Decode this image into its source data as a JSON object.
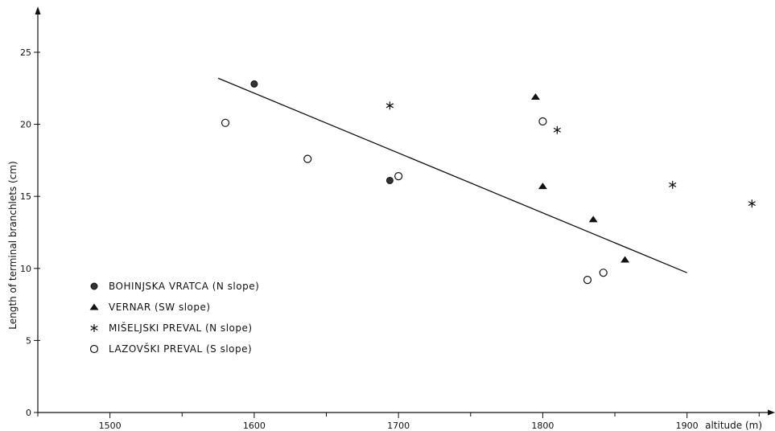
{
  "chart_data": {
    "type": "scatter",
    "title": "",
    "xlabel": "altitude (m)",
    "ylabel": "Length of terminal branchlets (cm)",
    "xlim": [
      1450,
      1950
    ],
    "ylim": [
      0,
      27
    ],
    "xticks": [
      1500,
      1600,
      1700,
      1800,
      1900
    ],
    "yticks": [
      0,
      5,
      10,
      15,
      20,
      25
    ],
    "grid": false,
    "legend_position": "bottom-left",
    "series": [
      {
        "name": "BOHINJSKA VRATCA (N slope)",
        "marker": "filled-circle",
        "points": [
          {
            "x": 1600,
            "y": 22.8
          },
          {
            "x": 1694,
            "y": 16.1
          }
        ]
      },
      {
        "name": "VERNAR (SW slope)",
        "marker": "filled-triangle",
        "points": [
          {
            "x": 1795,
            "y": 21.9
          },
          {
            "x": 1800,
            "y": 15.7
          },
          {
            "x": 1835,
            "y": 13.4
          },
          {
            "x": 1857,
            "y": 10.6
          }
        ]
      },
      {
        "name": "MIŠELJSKI PREVAL (N slope)",
        "marker": "asterisk",
        "points": [
          {
            "x": 1694,
            "y": 21.3
          },
          {
            "x": 1810,
            "y": 19.6
          },
          {
            "x": 1890,
            "y": 15.8
          },
          {
            "x": 1945,
            "y": 14.5
          }
        ]
      },
      {
        "name": "LAZOVŠKI PREVAL (S slope)",
        "marker": "open-circle",
        "points": [
          {
            "x": 1580,
            "y": 20.1
          },
          {
            "x": 1637,
            "y": 17.6
          },
          {
            "x": 1700,
            "y": 16.4
          },
          {
            "x": 1800,
            "y": 20.2
          },
          {
            "x": 1831,
            "y": 9.2
          },
          {
            "x": 1842,
            "y": 9.7
          }
        ]
      }
    ],
    "trendline": {
      "x": [
        1575,
        1900
      ],
      "y": [
        23.2,
        9.7
      ]
    }
  }
}
